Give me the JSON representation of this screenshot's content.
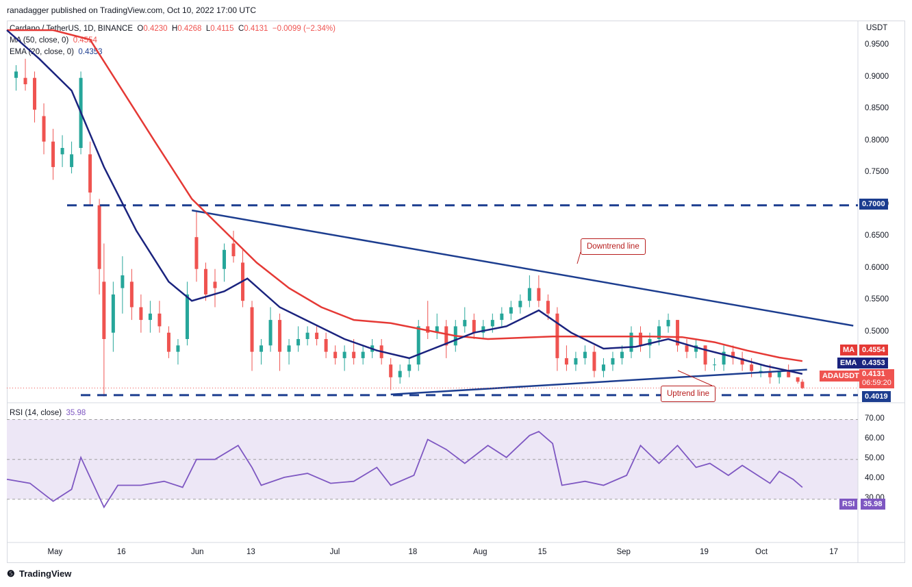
{
  "header": {
    "published": "ranadagger published on TradingView.com, Oct 10, 2022 17:00 UTC",
    "symbol": "Cardano / TetherUS, 1D, BINANCE",
    "ohlc": {
      "o_label": "O",
      "o": "0.4230",
      "h_label": "H",
      "h": "0.4268",
      "l_label": "L",
      "l": "0.4115",
      "c_label": "C",
      "c": "0.4131",
      "change": "−0.0099 (−2.34%)"
    },
    "ma_label": "MA (50, close, 0)",
    "ma_value": "0.4554",
    "ema_label": "EMA (20, close, 0)",
    "ema_value": "0.4353",
    "rsi_label": "RSI (14, close)",
    "rsi_value": "35.98"
  },
  "price_axis": {
    "currency": "USDT",
    "ticks": [
      "0.9500",
      "0.9000",
      "0.8500",
      "0.8000",
      "0.7500",
      "0.7000",
      "0.6500",
      "0.6000",
      "0.5500",
      "0.5000"
    ]
  },
  "rsi_axis": {
    "ticks": [
      "70.00",
      "60.00",
      "50.00",
      "40.00",
      "30.00"
    ]
  },
  "time_axis": [
    "May",
    "16",
    "Jun",
    "13",
    "Jul",
    "18",
    "Aug",
    "15",
    "Sep",
    "19",
    "Oct",
    "17"
  ],
  "tags": {
    "resistance": "0.7000",
    "ma": {
      "name": "MA",
      "value": "0.4554"
    },
    "ema": {
      "name": "EMA",
      "value": "0.4353"
    },
    "price": {
      "name": "ADAUSDT",
      "value": "0.4131",
      "countdown": "06:59:20"
    },
    "support": "0.4019",
    "rsi": {
      "name": "RSI",
      "value": "35.98"
    }
  },
  "annotations": {
    "downtrend": "Downtrend line",
    "uptrend": "Uptrend line"
  },
  "footer": {
    "brand": "TradingView"
  },
  "colors": {
    "up": "#26a69a",
    "down": "#ef5350",
    "ma": "#e53935",
    "ema": "#1a237e",
    "trend": "#1c3d8f",
    "level": "#1c3d8f",
    "rsi": "#7e57c2",
    "rsi_band": "#ede7f6"
  },
  "chart_data": {
    "type": "candlestick",
    "symbol": "ADAUSDT",
    "timeframe": "1D",
    "ylim": [
      0.39,
      0.99
    ],
    "x_range": [
      "2022-04-21",
      "2022-10-22"
    ],
    "horizontal_levels": [
      0.7,
      0.4019
    ],
    "trendlines": [
      {
        "name": "Downtrend line",
        "from": {
          "x": "2022-05-31",
          "y": 0.692
        },
        "to": {
          "x": "2022-10-21",
          "y": 0.511
        }
      },
      {
        "name": "Uptrend line",
        "from": {
          "x": "2022-07-13",
          "y": 0.403
        },
        "to": {
          "x": "2022-10-11",
          "y": 0.442
        }
      }
    ],
    "candles": [
      {
        "d": "2022-04-23",
        "o": 0.9,
        "h": 0.92,
        "l": 0.88,
        "c": 0.91
      },
      {
        "d": "2022-04-25",
        "o": 0.9,
        "h": 0.93,
        "l": 0.88,
        "c": 0.89
      },
      {
        "d": "2022-04-27",
        "o": 0.9,
        "h": 0.91,
        "l": 0.83,
        "c": 0.85
      },
      {
        "d": "2022-04-29",
        "o": 0.84,
        "h": 0.86,
        "l": 0.78,
        "c": 0.8
      },
      {
        "d": "2022-05-01",
        "o": 0.8,
        "h": 0.82,
        "l": 0.74,
        "c": 0.76
      },
      {
        "d": "2022-05-03",
        "o": 0.78,
        "h": 0.81,
        "l": 0.76,
        "c": 0.79
      },
      {
        "d": "2022-05-05",
        "o": 0.76,
        "h": 0.8,
        "l": 0.75,
        "c": 0.78
      },
      {
        "d": "2022-05-07",
        "o": 0.79,
        "h": 0.91,
        "l": 0.78,
        "c": 0.9
      },
      {
        "d": "2022-05-09",
        "o": 0.78,
        "h": 0.8,
        "l": 0.7,
        "c": 0.72
      },
      {
        "d": "2022-05-11",
        "o": 0.7,
        "h": 0.71,
        "l": 0.56,
        "c": 0.6
      },
      {
        "d": "2022-05-12",
        "o": 0.58,
        "h": 0.64,
        "l": 0.4,
        "c": 0.49
      },
      {
        "d": "2022-05-14",
        "o": 0.5,
        "h": 0.58,
        "l": 0.47,
        "c": 0.56
      },
      {
        "d": "2022-05-16",
        "o": 0.57,
        "h": 0.62,
        "l": 0.53,
        "c": 0.59
      },
      {
        "d": "2022-05-18",
        "o": 0.58,
        "h": 0.6,
        "l": 0.52,
        "c": 0.54
      },
      {
        "d": "2022-05-20",
        "o": 0.54,
        "h": 0.56,
        "l": 0.5,
        "c": 0.52
      },
      {
        "d": "2022-05-22",
        "o": 0.52,
        "h": 0.55,
        "l": 0.5,
        "c": 0.53
      },
      {
        "d": "2022-05-24",
        "o": 0.53,
        "h": 0.55,
        "l": 0.5,
        "c": 0.51
      },
      {
        "d": "2022-05-26",
        "o": 0.5,
        "h": 0.51,
        "l": 0.46,
        "c": 0.47
      },
      {
        "d": "2022-05-28",
        "o": 0.47,
        "h": 0.49,
        "l": 0.45,
        "c": 0.48
      },
      {
        "d": "2022-05-30",
        "o": 0.49,
        "h": 0.58,
        "l": 0.48,
        "c": 0.56
      },
      {
        "d": "2022-06-01",
        "o": 0.65,
        "h": 0.69,
        "l": 0.58,
        "c": 0.6
      },
      {
        "d": "2022-06-03",
        "o": 0.6,
        "h": 0.61,
        "l": 0.55,
        "c": 0.56
      },
      {
        "d": "2022-06-05",
        "o": 0.58,
        "h": 0.6,
        "l": 0.54,
        "c": 0.57
      },
      {
        "d": "2022-06-07",
        "o": 0.6,
        "h": 0.64,
        "l": 0.58,
        "c": 0.63
      },
      {
        "d": "2022-06-09",
        "o": 0.64,
        "h": 0.66,
        "l": 0.61,
        "c": 0.62
      },
      {
        "d": "2022-06-11",
        "o": 0.61,
        "h": 0.63,
        "l": 0.54,
        "c": 0.55
      },
      {
        "d": "2022-06-13",
        "o": 0.54,
        "h": 0.55,
        "l": 0.44,
        "c": 0.47
      },
      {
        "d": "2022-06-15",
        "o": 0.47,
        "h": 0.49,
        "l": 0.45,
        "c": 0.48
      },
      {
        "d": "2022-06-17",
        "o": 0.48,
        "h": 0.54,
        "l": 0.47,
        "c": 0.52
      },
      {
        "d": "2022-06-19",
        "o": 0.52,
        "h": 0.53,
        "l": 0.44,
        "c": 0.47
      },
      {
        "d": "2022-06-21",
        "o": 0.47,
        "h": 0.49,
        "l": 0.45,
        "c": 0.48
      },
      {
        "d": "2022-06-23",
        "o": 0.48,
        "h": 0.51,
        "l": 0.47,
        "c": 0.49
      },
      {
        "d": "2022-06-25",
        "o": 0.49,
        "h": 0.51,
        "l": 0.48,
        "c": 0.5
      },
      {
        "d": "2022-06-27",
        "o": 0.5,
        "h": 0.51,
        "l": 0.48,
        "c": 0.49
      },
      {
        "d": "2022-06-29",
        "o": 0.49,
        "h": 0.5,
        "l": 0.46,
        "c": 0.47
      },
      {
        "d": "2022-07-01",
        "o": 0.47,
        "h": 0.48,
        "l": 0.45,
        "c": 0.46
      },
      {
        "d": "2022-07-03",
        "o": 0.46,
        "h": 0.48,
        "l": 0.44,
        "c": 0.47
      },
      {
        "d": "2022-07-05",
        "o": 0.47,
        "h": 0.49,
        "l": 0.45,
        "c": 0.46
      },
      {
        "d": "2022-07-07",
        "o": 0.46,
        "h": 0.48,
        "l": 0.45,
        "c": 0.47
      },
      {
        "d": "2022-07-09",
        "o": 0.47,
        "h": 0.49,
        "l": 0.46,
        "c": 0.48
      },
      {
        "d": "2022-07-11",
        "o": 0.48,
        "h": 0.49,
        "l": 0.45,
        "c": 0.46
      },
      {
        "d": "2022-07-13",
        "o": 0.45,
        "h": 0.46,
        "l": 0.41,
        "c": 0.43
      },
      {
        "d": "2022-07-15",
        "o": 0.43,
        "h": 0.45,
        "l": 0.42,
        "c": 0.44
      },
      {
        "d": "2022-07-17",
        "o": 0.44,
        "h": 0.46,
        "l": 0.43,
        "c": 0.45
      },
      {
        "d": "2022-07-19",
        "o": 0.45,
        "h": 0.52,
        "l": 0.44,
        "c": 0.51
      },
      {
        "d": "2022-07-21",
        "o": 0.51,
        "h": 0.55,
        "l": 0.49,
        "c": 0.5
      },
      {
        "d": "2022-07-23",
        "o": 0.5,
        "h": 0.53,
        "l": 0.49,
        "c": 0.51
      },
      {
        "d": "2022-07-25",
        "o": 0.51,
        "h": 0.52,
        "l": 0.46,
        "c": 0.48
      },
      {
        "d": "2022-07-27",
        "o": 0.48,
        "h": 0.52,
        "l": 0.47,
        "c": 0.51
      },
      {
        "d": "2022-07-29",
        "o": 0.51,
        "h": 0.54,
        "l": 0.5,
        "c": 0.52
      },
      {
        "d": "2022-07-31",
        "o": 0.52,
        "h": 0.53,
        "l": 0.49,
        "c": 0.5
      },
      {
        "d": "2022-08-02",
        "o": 0.5,
        "h": 0.52,
        "l": 0.49,
        "c": 0.51
      },
      {
        "d": "2022-08-04",
        "o": 0.51,
        "h": 0.53,
        "l": 0.5,
        "c": 0.52
      },
      {
        "d": "2022-08-06",
        "o": 0.52,
        "h": 0.54,
        "l": 0.51,
        "c": 0.53
      },
      {
        "d": "2022-08-08",
        "o": 0.53,
        "h": 0.55,
        "l": 0.52,
        "c": 0.54
      },
      {
        "d": "2022-08-10",
        "o": 0.54,
        "h": 0.56,
        "l": 0.53,
        "c": 0.55
      },
      {
        "d": "2022-08-12",
        "o": 0.55,
        "h": 0.59,
        "l": 0.54,
        "c": 0.57
      },
      {
        "d": "2022-08-14",
        "o": 0.57,
        "h": 0.59,
        "l": 0.54,
        "c": 0.55
      },
      {
        "d": "2022-08-16",
        "o": 0.55,
        "h": 0.56,
        "l": 0.52,
        "c": 0.53
      },
      {
        "d": "2022-08-18",
        "o": 0.53,
        "h": 0.54,
        "l": 0.44,
        "c": 0.46
      },
      {
        "d": "2022-08-20",
        "o": 0.46,
        "h": 0.48,
        "l": 0.44,
        "c": 0.45
      },
      {
        "d": "2022-08-22",
        "o": 0.45,
        "h": 0.47,
        "l": 0.44,
        "c": 0.46
      },
      {
        "d": "2022-08-24",
        "o": 0.46,
        "h": 0.48,
        "l": 0.45,
        "c": 0.47
      },
      {
        "d": "2022-08-26",
        "o": 0.47,
        "h": 0.48,
        "l": 0.43,
        "c": 0.44
      },
      {
        "d": "2022-08-28",
        "o": 0.44,
        "h": 0.46,
        "l": 0.43,
        "c": 0.45
      },
      {
        "d": "2022-08-30",
        "o": 0.45,
        "h": 0.47,
        "l": 0.44,
        "c": 0.46
      },
      {
        "d": "2022-09-01",
        "o": 0.46,
        "h": 0.48,
        "l": 0.45,
        "c": 0.47
      },
      {
        "d": "2022-09-03",
        "o": 0.47,
        "h": 0.51,
        "l": 0.46,
        "c": 0.5
      },
      {
        "d": "2022-09-05",
        "o": 0.5,
        "h": 0.51,
        "l": 0.47,
        "c": 0.48
      },
      {
        "d": "2022-09-07",
        "o": 0.48,
        "h": 0.5,
        "l": 0.46,
        "c": 0.49
      },
      {
        "d": "2022-09-09",
        "o": 0.49,
        "h": 0.52,
        "l": 0.48,
        "c": 0.51
      },
      {
        "d": "2022-09-11",
        "o": 0.51,
        "h": 0.53,
        "l": 0.5,
        "c": 0.52
      },
      {
        "d": "2022-09-13",
        "o": 0.52,
        "h": 0.52,
        "l": 0.47,
        "c": 0.48
      },
      {
        "d": "2022-09-15",
        "o": 0.48,
        "h": 0.49,
        "l": 0.46,
        "c": 0.47
      },
      {
        "d": "2022-09-17",
        "o": 0.47,
        "h": 0.49,
        "l": 0.46,
        "c": 0.48
      },
      {
        "d": "2022-09-19",
        "o": 0.48,
        "h": 0.48,
        "l": 0.44,
        "c": 0.45
      },
      {
        "d": "2022-09-21",
        "o": 0.45,
        "h": 0.46,
        "l": 0.44,
        "c": 0.45
      },
      {
        "d": "2022-09-23",
        "o": 0.45,
        "h": 0.48,
        "l": 0.44,
        "c": 0.47
      },
      {
        "d": "2022-09-25",
        "o": 0.47,
        "h": 0.48,
        "l": 0.45,
        "c": 0.46
      },
      {
        "d": "2022-09-27",
        "o": 0.46,
        "h": 0.47,
        "l": 0.44,
        "c": 0.45
      },
      {
        "d": "2022-09-29",
        "o": 0.45,
        "h": 0.46,
        "l": 0.43,
        "c": 0.44
      },
      {
        "d": "2022-10-01",
        "o": 0.44,
        "h": 0.45,
        "l": 0.43,
        "c": 0.44
      },
      {
        "d": "2022-10-03",
        "o": 0.44,
        "h": 0.45,
        "l": 0.42,
        "c": 0.43
      },
      {
        "d": "2022-10-05",
        "o": 0.43,
        "h": 0.44,
        "l": 0.42,
        "c": 0.44
      },
      {
        "d": "2022-10-07",
        "o": 0.44,
        "h": 0.45,
        "l": 0.43,
        "c": 0.43
      },
      {
        "d": "2022-10-09",
        "o": 0.43,
        "h": 0.43,
        "l": 0.42,
        "c": 0.423
      },
      {
        "d": "2022-10-10",
        "o": 0.423,
        "h": 0.4268,
        "l": 0.4115,
        "c": 0.4131
      }
    ],
    "ma50": [
      [
        "2022-04-21",
        0.975
      ],
      [
        "2022-05-01",
        0.975
      ],
      [
        "2022-05-09",
        0.96
      ],
      [
        "2022-05-16",
        0.88
      ],
      [
        "2022-05-23",
        0.8
      ],
      [
        "2022-05-31",
        0.71
      ],
      [
        "2022-06-07",
        0.66
      ],
      [
        "2022-06-14",
        0.61
      ],
      [
        "2022-06-21",
        0.57
      ],
      [
        "2022-06-28",
        0.54
      ],
      [
        "2022-07-05",
        0.52
      ],
      [
        "2022-07-13",
        0.515
      ],
      [
        "2022-07-20",
        0.505
      ],
      [
        "2022-07-27",
        0.495
      ],
      [
        "2022-08-03",
        0.49
      ],
      [
        "2022-08-10",
        0.492
      ],
      [
        "2022-08-17",
        0.494
      ],
      [
        "2022-08-24",
        0.494
      ],
      [
        "2022-08-31",
        0.494
      ],
      [
        "2022-09-07",
        0.494
      ],
      [
        "2022-09-14",
        0.493
      ],
      [
        "2022-09-21",
        0.485
      ],
      [
        "2022-09-28",
        0.472
      ],
      [
        "2022-10-05",
        0.461
      ],
      [
        "2022-10-10",
        0.4554
      ]
    ],
    "ema20": [
      [
        "2022-04-21",
        0.975
      ],
      [
        "2022-04-28",
        0.93
      ],
      [
        "2022-05-05",
        0.88
      ],
      [
        "2022-05-12",
        0.76
      ],
      [
        "2022-05-19",
        0.66
      ],
      [
        "2022-05-26",
        0.58
      ],
      [
        "2022-05-31",
        0.55
      ],
      [
        "2022-06-07",
        0.565
      ],
      [
        "2022-06-12",
        0.585
      ],
      [
        "2022-06-19",
        0.54
      ],
      [
        "2022-06-26",
        0.515
      ],
      [
        "2022-07-03",
        0.49
      ],
      [
        "2022-07-10",
        0.472
      ],
      [
        "2022-07-17",
        0.46
      ],
      [
        "2022-07-24",
        0.48
      ],
      [
        "2022-07-31",
        0.5
      ],
      [
        "2022-08-07",
        0.51
      ],
      [
        "2022-08-14",
        0.535
      ],
      [
        "2022-08-21",
        0.5
      ],
      [
        "2022-08-28",
        0.475
      ],
      [
        "2022-09-04",
        0.478
      ],
      [
        "2022-09-11",
        0.49
      ],
      [
        "2022-09-18",
        0.475
      ],
      [
        "2022-09-25",
        0.462
      ],
      [
        "2022-10-02",
        0.448
      ],
      [
        "2022-10-10",
        0.4353
      ]
    ],
    "rsi14": [
      [
        "2022-04-21",
        40
      ],
      [
        "2022-04-26",
        38
      ],
      [
        "2022-05-01",
        29
      ],
      [
        "2022-05-05",
        35
      ],
      [
        "2022-05-07",
        51
      ],
      [
        "2022-05-10",
        36
      ],
      [
        "2022-05-12",
        26
      ],
      [
        "2022-05-15",
        37
      ],
      [
        "2022-05-20",
        37
      ],
      [
        "2022-05-25",
        39
      ],
      [
        "2022-05-29",
        36
      ],
      [
        "2022-06-01",
        50
      ],
      [
        "2022-06-05",
        50
      ],
      [
        "2022-06-10",
        57
      ],
      [
        "2022-06-13",
        46
      ],
      [
        "2022-06-15",
        37
      ],
      [
        "2022-06-20",
        41
      ],
      [
        "2022-06-25",
        43
      ],
      [
        "2022-06-30",
        38
      ],
      [
        "2022-07-05",
        39
      ],
      [
        "2022-07-10",
        46
      ],
      [
        "2022-07-13",
        37
      ],
      [
        "2022-07-18",
        42
      ],
      [
        "2022-07-21",
        60
      ],
      [
        "2022-07-25",
        55
      ],
      [
        "2022-07-29",
        48
      ],
      [
        "2022-08-03",
        57
      ],
      [
        "2022-08-07",
        51
      ],
      [
        "2022-08-12",
        62
      ],
      [
        "2022-08-14",
        64
      ],
      [
        "2022-08-17",
        58
      ],
      [
        "2022-08-19",
        37
      ],
      [
        "2022-08-24",
        39
      ],
      [
        "2022-08-28",
        37
      ],
      [
        "2022-09-02",
        42
      ],
      [
        "2022-09-05",
        57
      ],
      [
        "2022-09-09",
        48
      ],
      [
        "2022-09-13",
        57
      ],
      [
        "2022-09-17",
        46
      ],
      [
        "2022-09-20",
        48
      ],
      [
        "2022-09-24",
        42
      ],
      [
        "2022-09-27",
        47
      ],
      [
        "2022-10-01",
        41
      ],
      [
        "2022-10-03",
        38
      ],
      [
        "2022-10-05",
        44
      ],
      [
        "2022-10-08",
        40
      ],
      [
        "2022-10-10",
        35.98
      ]
    ],
    "rsi_levels": [
      70,
      30
    ]
  }
}
